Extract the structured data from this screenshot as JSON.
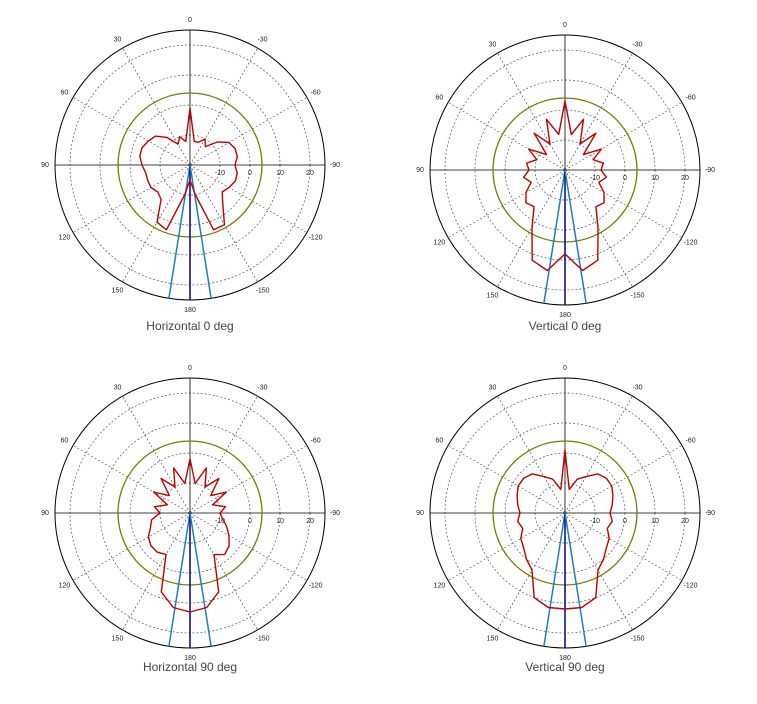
{
  "chart_data": [
    {
      "type": "polar",
      "title": "Horizontal 0 deg",
      "color": "#c00000",
      "theta": [
        0,
        10,
        20,
        30,
        40,
        50,
        60,
        70,
        80,
        90,
        100,
        110,
        120,
        130,
        140,
        150,
        160,
        170,
        180,
        190,
        200,
        210,
        220,
        230,
        240,
        250,
        260,
        270,
        280,
        290,
        300,
        310,
        320,
        330,
        340,
        350
      ],
      "values": [
        -1,
        -12,
        -10,
        -12,
        -8,
        -5,
        -4,
        -3,
        -3,
        -4,
        -5,
        -5,
        -5,
        -6,
        -5,
        2,
        3,
        -10,
        -15,
        -10,
        3,
        3,
        -3,
        -6,
        -5,
        -4,
        -4,
        -5,
        -4,
        -4,
        -5,
        -8,
        -12,
        -10,
        -12,
        -12
      ],
      "rlim": [
        -20,
        25
      ],
      "rticks": [
        -10,
        0,
        10,
        20
      ],
      "thetaticks": [
        0,
        30,
        60,
        90,
        120,
        150,
        180,
        -150,
        -120,
        -90,
        -60,
        -30
      ],
      "reference": 4,
      "reference_color": "#7a7a00",
      "markers": [
        {
          "theta": 171,
          "color": "#1a7fc1"
        },
        {
          "theta": 180,
          "color": "#00008b"
        },
        {
          "theta": 189,
          "color": "#1a7fc1"
        }
      ]
    },
    {
      "type": "polar",
      "title": "Vertical 0 deg",
      "color": "#c00000",
      "theta": [
        0,
        10,
        20,
        30,
        40,
        50,
        60,
        70,
        80,
        90,
        100,
        110,
        120,
        130,
        140,
        150,
        160,
        170,
        180,
        190,
        200,
        210,
        220,
        230,
        240,
        250,
        260,
        270,
        280,
        290,
        300,
        310,
        320,
        330,
        340,
        350
      ],
      "values": [
        3,
        -8,
        -2,
        -10,
        -4,
        -12,
        -6,
        -10,
        -7,
        -8,
        -6,
        -8,
        -5,
        -3,
        -4,
        2,
        12,
        14,
        8,
        14,
        12,
        2,
        -4,
        -3,
        -5,
        -8,
        -6,
        -8,
        -7,
        -10,
        -6,
        -12,
        -4,
        -10,
        -2,
        -8
      ],
      "rlim": [
        -20,
        25
      ],
      "rticks": [
        -10,
        0,
        10,
        20
      ],
      "thetaticks": [
        0,
        30,
        60,
        90,
        120,
        150,
        180,
        -150,
        -120,
        -90,
        -60,
        -30
      ],
      "reference": 4,
      "reference_color": "#7a7a00",
      "markers": [
        {
          "theta": 171,
          "color": "#1a7fc1"
        },
        {
          "theta": 180,
          "color": "#00008b"
        },
        {
          "theta": 189,
          "color": "#1a7fc1"
        }
      ]
    },
    {
      "type": "polar",
      "title": "Horizontal 90 deg",
      "color": "#c00000",
      "theta": [
        0,
        10,
        20,
        30,
        40,
        50,
        60,
        70,
        80,
        90,
        100,
        110,
        120,
        130,
        140,
        150,
        160,
        170,
        180,
        190,
        200,
        210,
        220,
        230,
        240,
        250,
        260,
        270,
        280,
        290,
        300,
        310,
        320,
        330,
        340,
        350
      ],
      "values": [
        -2,
        -10,
        -4,
        -10,
        -5,
        -11,
        -6,
        -12,
        -8,
        -10,
        -7,
        -6,
        -4,
        -3,
        -3,
        -4,
        8,
        12,
        13,
        12,
        8,
        -4,
        -2,
        -3,
        -5,
        -7,
        -9,
        -10,
        -8,
        -12,
        -6,
        -11,
        -5,
        -10,
        -4,
        -10
      ],
      "rlim": [
        -20,
        25
      ],
      "rticks": [
        -10,
        0,
        10,
        20
      ],
      "thetaticks": [
        0,
        30,
        60,
        90,
        120,
        150,
        180,
        -150,
        -120,
        -90,
        -60,
        -30
      ],
      "reference": 4,
      "reference_color": "#7a7a00",
      "markers": [
        {
          "theta": 171,
          "color": "#1a7fc1"
        },
        {
          "theta": 180,
          "color": "#00008b"
        },
        {
          "theta": 189,
          "color": "#1a7fc1"
        }
      ]
    },
    {
      "type": "polar",
      "title": "Vertical 90 deg",
      "color": "#c00000",
      "theta": [
        0,
        10,
        20,
        30,
        40,
        50,
        60,
        70,
        80,
        90,
        100,
        110,
        120,
        130,
        140,
        150,
        160,
        170,
        180,
        190,
        200,
        210,
        220,
        230,
        240,
        250,
        260,
        270,
        280,
        290,
        300,
        310,
        320,
        330,
        340,
        350
      ],
      "values": [
        1,
        -12,
        -8,
        -6,
        -3,
        -2,
        -2,
        -3,
        -4,
        -5,
        -4,
        -5,
        -3,
        -2,
        0,
        2,
        10,
        12,
        12,
        12,
        10,
        2,
        0,
        -2,
        -3,
        -5,
        -4,
        -5,
        -4,
        -3,
        -2,
        -2,
        -3,
        -6,
        -8,
        -12
      ],
      "rlim": [
        -20,
        25
      ],
      "rticks": [
        -10,
        0,
        10,
        20
      ],
      "thetaticks": [
        0,
        30,
        60,
        90,
        120,
        150,
        180,
        -150,
        -120,
        -90,
        -60,
        -30
      ],
      "reference": 4,
      "reference_color": "#7a7a00",
      "markers": [
        {
          "theta": 171,
          "color": "#1a7fc1"
        },
        {
          "theta": 180,
          "color": "#00008b"
        },
        {
          "theta": 189,
          "color": "#1a7fc1"
        }
      ]
    }
  ]
}
